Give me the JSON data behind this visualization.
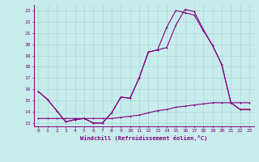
{
  "xlabel": "Windchill (Refroidissement éolien,°C)",
  "bg_color": "#c8ecec",
  "line_color": "#800080",
  "grid_color": "#a8d8d8",
  "xlim": [
    -0.5,
    23.5
  ],
  "ylim": [
    12.7,
    23.5
  ],
  "yticks": [
    13,
    14,
    15,
    16,
    17,
    18,
    19,
    20,
    21,
    22,
    23
  ],
  "xticks": [
    0,
    1,
    2,
    3,
    4,
    5,
    6,
    7,
    8,
    9,
    10,
    11,
    12,
    13,
    14,
    15,
    16,
    17,
    18,
    19,
    20,
    21,
    22,
    23
  ],
  "series1_x": [
    0,
    1,
    2,
    3,
    4,
    5,
    6,
    7,
    8,
    9,
    10,
    11,
    12,
    13,
    14,
    15,
    16,
    17,
    18,
    19,
    20,
    21,
    22,
    23
  ],
  "series1_y": [
    15.8,
    15.1,
    14.1,
    13.1,
    13.3,
    13.4,
    13.0,
    13.0,
    13.9,
    15.3,
    15.2,
    17.0,
    19.3,
    19.5,
    19.7,
    21.7,
    23.1,
    22.9,
    21.3,
    19.9,
    18.2,
    14.8,
    14.2,
    14.2
  ],
  "series2_x": [
    0,
    1,
    2,
    3,
    4,
    5,
    6,
    7,
    8,
    9,
    10,
    11,
    12,
    13,
    14,
    15,
    16,
    17,
    18,
    19,
    20,
    21,
    22,
    23
  ],
  "series2_y": [
    15.8,
    15.1,
    14.1,
    13.1,
    13.3,
    13.4,
    13.0,
    13.0,
    13.9,
    15.3,
    15.2,
    17.0,
    19.3,
    19.5,
    21.5,
    23.0,
    22.8,
    22.6,
    21.2,
    19.9,
    18.2,
    14.8,
    14.2,
    14.2
  ],
  "series3_x": [
    0,
    1,
    2,
    3,
    4,
    5,
    6,
    7,
    8,
    9,
    10,
    11,
    12,
    13,
    14,
    15,
    16,
    17,
    18,
    19,
    20,
    21,
    22,
    23
  ],
  "series3_y": [
    13.4,
    13.4,
    13.4,
    13.4,
    13.4,
    13.4,
    13.4,
    13.4,
    13.4,
    13.5,
    13.6,
    13.7,
    13.9,
    14.1,
    14.2,
    14.4,
    14.5,
    14.6,
    14.7,
    14.8,
    14.8,
    14.8,
    14.8,
    14.8
  ]
}
